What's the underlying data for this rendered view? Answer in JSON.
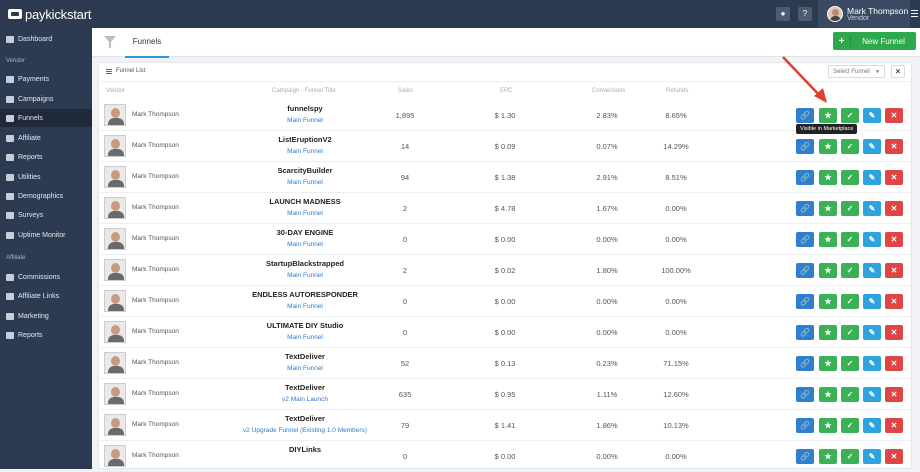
{
  "app": {
    "logo_bold": "pay",
    "logo_light": "kickstart"
  },
  "topbar": {
    "user_name": "Mark Thompson",
    "user_role": "Vendor"
  },
  "sidebar": {
    "dashboard": "Dashboard",
    "vendor_section": "Vendor",
    "vendor_items": [
      "Payments",
      "Campaigns",
      "Funnels",
      "Affiliate",
      "Reports",
      "Utilities",
      "Demographics",
      "Surveys",
      "Uptime Monitor"
    ],
    "affiliate_section": "Affiliate",
    "affiliate_items": [
      "Commissions",
      "Affiliate Links",
      "Marketing",
      "Reports"
    ],
    "active": "Funnels"
  },
  "tabs": {
    "funnels": "Funnels"
  },
  "actions": {
    "new_funnel": "New Funnel"
  },
  "panel": {
    "title": "Funnel List",
    "select_placeholder": "Select Funnel",
    "clear": "×"
  },
  "columns": {
    "vendor": "Vendor",
    "campaign": "Campaign - Funnel Title",
    "sales": "Sales",
    "epc": "EPC",
    "conversions": "Conversions",
    "refunds": "Refunds"
  },
  "tooltip": "Visible in Marketplace",
  "rows": [
    {
      "vendor": "Mark Thompson",
      "campaign": "funnelspy",
      "funnel": "Main Funnel",
      "sales": "1,895",
      "epc": "$ 1.30",
      "conversions": "2.83%",
      "refunds": "8.65%"
    },
    {
      "vendor": "Mark Thompson",
      "campaign": "ListEruptionV2",
      "funnel": "Main Funnel",
      "sales": "14",
      "epc": "$ 0.09",
      "conversions": "0.07%",
      "refunds": "14.29%"
    },
    {
      "vendor": "Mark Thompson",
      "campaign": "ScarcityBuilder",
      "funnel": "Main Funnel",
      "sales": "94",
      "epc": "$ 1.38",
      "conversions": "2.91%",
      "refunds": "8.51%"
    },
    {
      "vendor": "Mark Thompson",
      "campaign": "LAUNCH MADNESS",
      "funnel": "Main Funnel",
      "sales": "2",
      "epc": "$ 4.78",
      "conversions": "1.67%",
      "refunds": "0.00%"
    },
    {
      "vendor": "Mark Thompson",
      "campaign": "30-DAY ENGINE",
      "funnel": "Main Funnel",
      "sales": "0",
      "epc": "$ 0.00",
      "conversions": "0.00%",
      "refunds": "0.00%"
    },
    {
      "vendor": "Mark Thompson",
      "campaign": "StartupBlackstrapped",
      "funnel": "Main Funnel",
      "sales": "2",
      "epc": "$ 0.02",
      "conversions": "1.80%",
      "refunds": "100.00%"
    },
    {
      "vendor": "Mark Thompson",
      "campaign": "ENDLESS AUTORESPONDER",
      "funnel": "Main Funnel",
      "sales": "0",
      "epc": "$ 0.00",
      "conversions": "0.00%",
      "refunds": "0.00%"
    },
    {
      "vendor": "Mark Thompson",
      "campaign": "ULTIMATE DIY Studio",
      "funnel": "Main Funnel",
      "sales": "0",
      "epc": "$ 0.00",
      "conversions": "0.00%",
      "refunds": "0.00%"
    },
    {
      "vendor": "Mark Thompson",
      "campaign": "TextDeliver",
      "funnel": "Main Funnel",
      "sales": "52",
      "epc": "$ 0.13",
      "conversions": "0.23%",
      "refunds": "71.15%"
    },
    {
      "vendor": "Mark Thompson",
      "campaign": "TextDeliver",
      "funnel": "v2 Main Launch",
      "sales": "635",
      "epc": "$ 0.95",
      "conversions": "1.11%",
      "refunds": "12.60%"
    },
    {
      "vendor": "Mark Thompson",
      "campaign": "TextDeliver",
      "funnel": "v2 Upgrade Funnel (Existing 1.0 Members)",
      "sales": "79",
      "epc": "$ 1.41",
      "conversions": "1.86%",
      "refunds": "10.13%"
    },
    {
      "vendor": "Mark Thompson",
      "campaign": "DIYLinks",
      "funnel": "",
      "sales": "0",
      "epc": "$ 0.00",
      "conversions": "0.00%",
      "refunds": "0.00%"
    }
  ],
  "icons": {
    "link": "link-icon",
    "star": "star-icon",
    "check": "check-icon",
    "edit": "pencil-icon",
    "delete": "close-icon"
  },
  "colors": {
    "topbar": "#2c3b52",
    "primary": "#2f7fd1",
    "success": "#3bb155",
    "info": "#2ea3e0",
    "danger": "#e04545",
    "annotation": "#e0412c"
  }
}
